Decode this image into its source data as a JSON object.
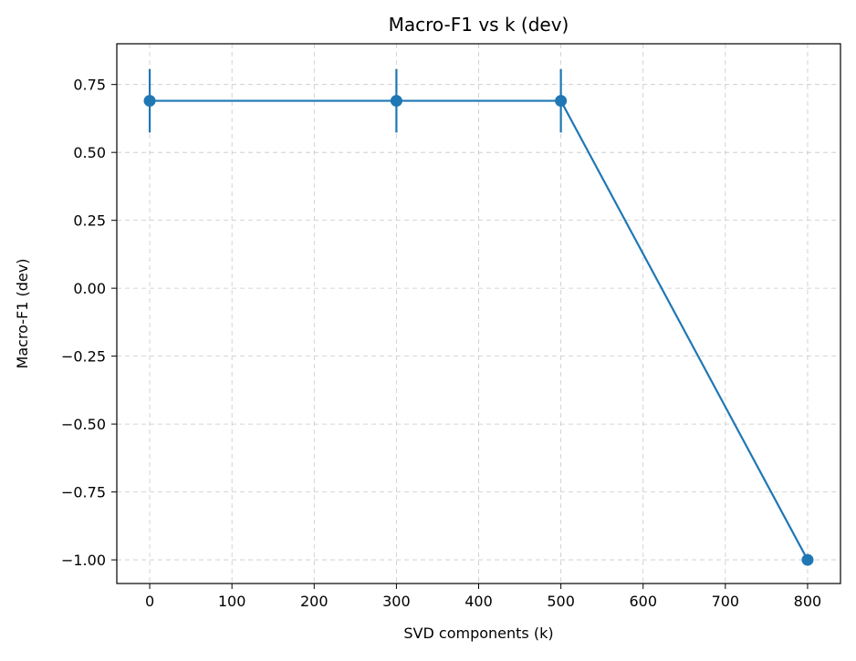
{
  "chart_data": {
    "type": "line",
    "title": "Macro-F1 vs k (dev)",
    "xlabel": "SVD components (k)",
    "ylabel": "Macro-F1 (dev)",
    "xlim": [
      -40,
      840
    ],
    "ylim": [
      -1.087,
      0.9
    ],
    "xticks": [
      0,
      100,
      200,
      300,
      400,
      500,
      600,
      700,
      800
    ],
    "xtick_labels": [
      "0",
      "100",
      "200",
      "300",
      "400",
      "500",
      "600",
      "700",
      "800"
    ],
    "yticks": [
      0.75,
      0.5,
      0.25,
      0.0,
      -0.25,
      -0.5,
      -0.75,
      -1.0
    ],
    "ytick_labels": [
      "0.75",
      "0.50",
      "0.25",
      "0.00",
      "−0.25",
      "−0.50",
      "−0.75",
      "−1.00"
    ],
    "grid": true,
    "legend": "none",
    "series": [
      {
        "color": "#1f77b4",
        "marker": "circle",
        "x": [
          0,
          300,
          500,
          800
        ],
        "y": [
          0.69,
          0.69,
          0.69,
          -1.0
        ],
        "yerr": [
          0.117,
          0.117,
          0.117,
          0.0
        ]
      }
    ]
  }
}
